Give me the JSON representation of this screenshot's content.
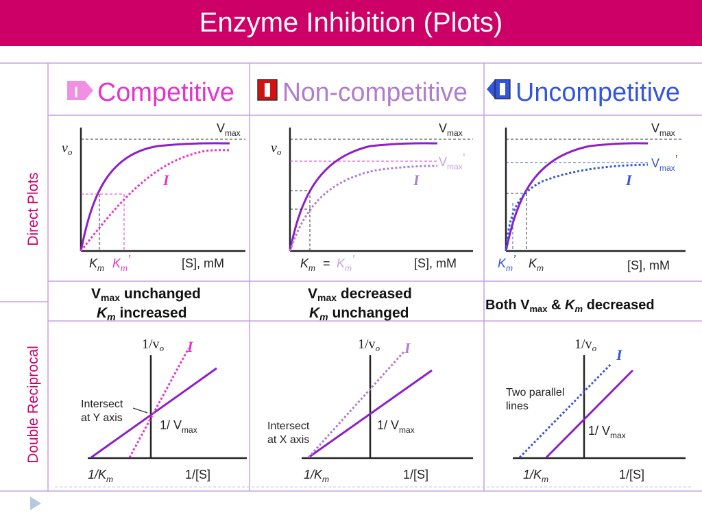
{
  "title": "Enzyme Inhibition (Plots)",
  "colors": {
    "title_bg": "#cc0066",
    "purple": "#8d1ec9",
    "pink": "#e633cc",
    "lavender": "#b07ccc",
    "blue": "#3355dd",
    "grid": "#b77ad0"
  },
  "headers": {
    "competitive": "Competitive",
    "noncompetitive": "Non-competitive",
    "uncompetitive": "Uncompetitive",
    "badge_letter": "I"
  },
  "rows": {
    "direct": "Direct Plots",
    "reciprocal": "Double Reciprocal"
  },
  "labels": {
    "vo": "v",
    "vo_sub": "o",
    "vmax": "V",
    "vmax_sub": "max",
    "prime": "’",
    "km": "K",
    "km_sub": "m",
    "equals": "=",
    "s_axis": "[S], mM",
    "inhibitor": "I",
    "recip_y": "1/v",
    "recip_x": "1/[S]",
    "recip_km": "1/K",
    "recip_vmax": "1/ V"
  },
  "summary": {
    "competitive_vmax": " unchanged",
    "competitive_km": " increased",
    "noncompetitive_vmax": " decreased",
    "noncompetitive_km": " unchanged",
    "uncompetitive_pre": "Both V",
    "uncompetitive_mid": " & ",
    "uncompetitive_post": " decreased"
  },
  "notes": {
    "comp_line1": "Intersect",
    "comp_line2": "at Y axis",
    "noncomp_line1": "Intersect",
    "noncomp_line2": "at X axis",
    "uncomp_line1": "Two parallel",
    "uncomp_line2": "lines"
  }
}
